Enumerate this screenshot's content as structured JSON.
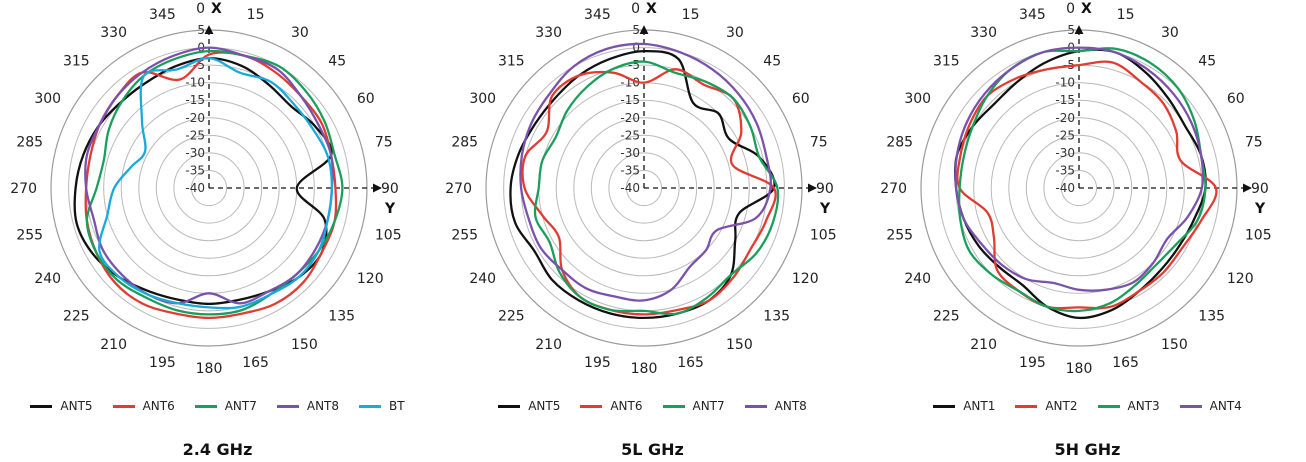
{
  "chart_data": [
    {
      "type": "polar",
      "title": "2.4 GHz",
      "angle_ticks": [
        "0",
        "15",
        "30",
        "45",
        "60",
        "75",
        "90",
        "105",
        "120",
        "135",
        "150",
        "165",
        "180",
        "195",
        "210",
        "225",
        "240",
        "255",
        "270",
        "285",
        "300",
        "315",
        "330",
        "345"
      ],
      "radial_ticks": [
        "5",
        "0",
        "-5",
        "-10",
        "-15",
        "-20",
        "-25",
        "-30",
        "-35",
        "-40"
      ],
      "rlim": [
        -40,
        5
      ],
      "axis_labels": {
        "zero": "X",
        "ninety": "Y"
      },
      "series": [
        {
          "name": "ANT5",
          "color": "#111111",
          "values": [
            -3,
            -4,
            -6,
            -7,
            -5,
            -4,
            -15,
            -6,
            -3,
            -4,
            -6,
            -7,
            -7,
            -7,
            -6,
            -4,
            -2,
            -1,
            -2,
            -3,
            -4,
            -5,
            -5,
            -4
          ]
        },
        {
          "name": "ANT6",
          "color": "#e03c31",
          "values": [
            -2,
            -1,
            -2,
            -3,
            -3,
            -4,
            -4,
            -3,
            -3,
            -2,
            -2,
            -3,
            -3,
            -3,
            -2,
            -2,
            -3,
            -4,
            -5,
            -5,
            -4,
            -3,
            -2,
            -8
          ]
        },
        {
          "name": "ANT7",
          "color": "#1a9e5c",
          "values": [
            -1,
            -1,
            0,
            -1,
            -2,
            -3,
            -2,
            -3,
            -4,
            -5,
            -5,
            -4,
            -4,
            -4,
            -4,
            -3,
            -3,
            -4,
            -8,
            -9,
            -7,
            -5,
            -3,
            -2
          ]
        },
        {
          "name": "ANT8",
          "color": "#7b52ab",
          "values": [
            0,
            -1,
            -1,
            -3,
            -4,
            -4,
            -5,
            -5,
            -5,
            -5,
            -6,
            -6,
            -10,
            -6,
            -5,
            -5,
            -5,
            -6,
            -5,
            -4,
            -4,
            -3,
            -2,
            -1
          ]
        },
        {
          "name": "BT",
          "color": "#19a9dc",
          "values": [
            -3,
            -6,
            -5,
            -6,
            -6,
            -5,
            -5,
            -5,
            -4,
            -4,
            -5,
            -5,
            -6,
            -6,
            -5,
            -4,
            -4,
            -10,
            -13,
            -17,
            -19,
            -13,
            -3,
            -5
          ]
        }
      ]
    },
    {
      "type": "polar",
      "title": "5L GHz",
      "angle_ticks": [
        "0",
        "15",
        "30",
        "45",
        "60",
        "75",
        "90",
        "105",
        "120",
        "135",
        "150",
        "165",
        "180",
        "195",
        "210",
        "225",
        "240",
        "255",
        "270",
        "285",
        "300",
        "315",
        "330",
        "345"
      ],
      "radial_ticks": [
        "5",
        "0",
        "-5",
        "-10",
        "-15",
        "-20",
        "-25",
        "-30",
        "-35",
        "-40"
      ],
      "rlim": [
        -40,
        5
      ],
      "axis_labels": {
        "zero": "X",
        "ninety": "Y"
      },
      "series": [
        {
          "name": "ANT5",
          "color": "#111111",
          "values": [
            -1,
            -2,
            -12,
            -10,
            -12,
            -6,
            -3,
            -12,
            -10,
            -5,
            -3,
            -3,
            -3,
            -3,
            -3,
            -3,
            -4,
            -2,
            -2,
            -3,
            -4,
            -4,
            -3,
            -2
          ]
        },
        {
          "name": "ANT6",
          "color": "#e03c31",
          "values": [
            -10,
            -5,
            -6,
            -4,
            -8,
            -14,
            -3,
            -4,
            -5,
            -4,
            -3,
            -4,
            -4,
            -4,
            -4,
            -7,
            -12,
            -10,
            -6,
            -5,
            -8,
            -3,
            -3,
            -6
          ]
        },
        {
          "name": "ANT7",
          "color": "#1a9e5c",
          "values": [
            -4,
            -6,
            -5,
            -4,
            -5,
            -6,
            -2,
            -2,
            -3,
            -5,
            -4,
            -3,
            -5,
            -4,
            -4,
            -6,
            -9,
            -8,
            -10,
            -10,
            -11,
            -9,
            -7,
            -5
          ]
        },
        {
          "name": "ANT8",
          "color": "#7b52ab",
          "values": [
            1,
            0,
            -1,
            -2,
            -3,
            -4,
            -4,
            -7,
            -16,
            -15,
            -14,
            -10,
            -8,
            -8,
            -7,
            -7,
            -6,
            -6,
            -5,
            -4,
            -3,
            -2,
            0,
            1
          ]
        }
      ]
    },
    {
      "type": "polar",
      "title": "5H GHz",
      "angle_ticks": [
        "0",
        "15",
        "30",
        "45",
        "60",
        "75",
        "90",
        "105",
        "120",
        "135",
        "150",
        "165",
        "180",
        "195",
        "210",
        "225",
        "240",
        "255",
        "270",
        "285",
        "300",
        "315",
        "330",
        "345"
      ],
      "radial_ticks": [
        "5",
        "0",
        "-5",
        "-10",
        "-15",
        "-20",
        "-25",
        "-30",
        "-35",
        "-40"
      ],
      "rlim": [
        -40,
        5
      ],
      "axis_labels": {
        "zero": "X",
        "ninety": "Y"
      },
      "series": [
        {
          "name": "ANT1",
          "color": "#111111",
          "values": [
            -1,
            0,
            -2,
            -4,
            -5,
            -4,
            -4,
            -6,
            -7,
            -7,
            -6,
            -4,
            -3,
            -5,
            -8,
            -8,
            -7,
            -6,
            -5,
            -4,
            -5,
            -6,
            -5,
            -3
          ]
        },
        {
          "name": "ANT2",
          "color": "#e03c31",
          "values": [
            -5,
            -3,
            -5,
            -6,
            -8,
            -10,
            -1,
            -4,
            -6,
            -6,
            -6,
            -5,
            -6,
            -5,
            -6,
            -7,
            -12,
            -13,
            -6,
            -5,
            -4,
            -3,
            -4,
            -5
          ]
        },
        {
          "name": "ANT3",
          "color": "#1a9e5c",
          "values": [
            -1,
            1,
            1,
            0,
            -2,
            -4,
            -4,
            -5,
            -8,
            -9,
            -8,
            -6,
            -5,
            -5,
            -6,
            -5,
            -4,
            -5,
            -6,
            -6,
            -5,
            -3,
            -1,
            0
          ]
        },
        {
          "name": "ANT4",
          "color": "#7b52ab",
          "values": [
            0,
            0,
            -1,
            -2,
            -3,
            -4,
            -5,
            -8,
            -11,
            -10,
            -9,
            -10,
            -11,
            -12,
            -10,
            -9,
            -8,
            -6,
            -5,
            -4,
            -3,
            -2,
            -1,
            0
          ]
        }
      ]
    }
  ]
}
